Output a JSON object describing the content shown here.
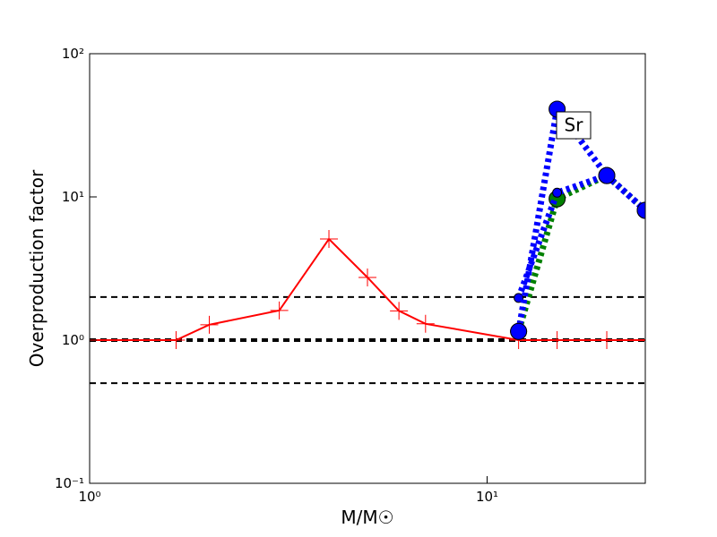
{
  "chart_data": {
    "type": "line",
    "xlabel": "M/M☉",
    "ylabel": "Overproduction factor",
    "annotation": "Sr",
    "xlog": true,
    "ylog": true,
    "xlim": [
      1,
      25
    ],
    "ylim": [
      0.1,
      100
    ],
    "xticks": [
      {
        "value": 1,
        "label": "10⁰"
      },
      {
        "value": 10,
        "label": "10¹"
      }
    ],
    "yticks": [
      {
        "value": 0.1,
        "label": "10⁻¹"
      },
      {
        "value": 1,
        "label": "10⁰"
      },
      {
        "value": 10,
        "label": "10¹"
      },
      {
        "value": 100,
        "label": "10²"
      }
    ],
    "hlines": [
      {
        "value": 2,
        "width": 2
      },
      {
        "value": 1,
        "width": 4
      },
      {
        "value": 0.5,
        "width": 2
      }
    ],
    "series": [
      {
        "color": "#ff0000",
        "linestyle": "solid",
        "marker": "plus",
        "x": [
          1,
          1.65,
          2,
          3,
          4,
          5,
          6,
          7,
          12,
          15,
          20,
          25
        ],
        "values": [
          1,
          1,
          1.28,
          1.61,
          5.08,
          2.74,
          1.6,
          1.3,
          1,
          1,
          1,
          1
        ]
      },
      {
        "color": "#008000",
        "linestyle": "dotted",
        "marker": "circle-big",
        "x": [
          12,
          15,
          20,
          25
        ],
        "values": [
          1.15,
          9.7,
          14.1,
          8.06
        ]
      },
      {
        "color": "#0000ff",
        "linestyle": "dotted",
        "marker": "circle-small",
        "x": [
          12,
          15,
          20,
          25
        ],
        "values": [
          1.97,
          10.7,
          14.1,
          8.06
        ]
      },
      {
        "color": "#0000ff",
        "linestyle": "dotted",
        "marker": "circle-big",
        "x": [
          12,
          15,
          20,
          25
        ],
        "values": [
          1.15,
          41,
          14.1,
          8.06
        ]
      }
    ]
  }
}
